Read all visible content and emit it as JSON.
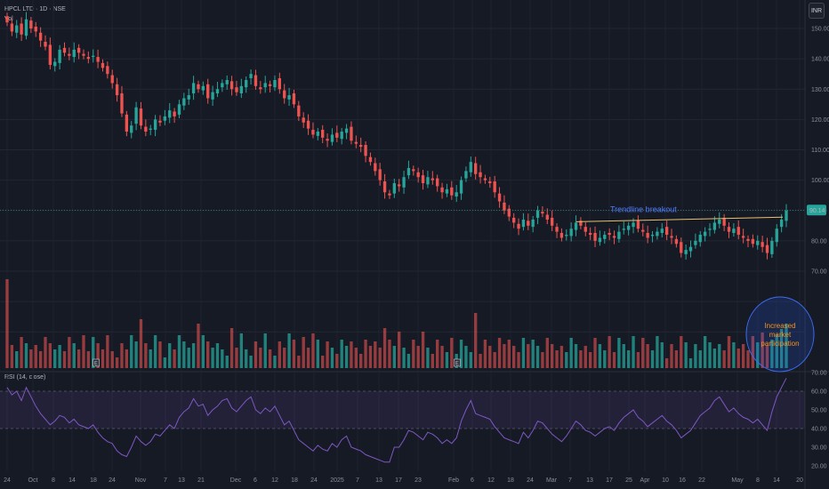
{
  "header": {
    "symbol_line": "HPCL LTD · 1D · NSE",
    "vol_label": "Vol",
    "rsi_label": "RSI (14, close)",
    "currency_button": "INR"
  },
  "colors": {
    "background": "#161a25",
    "up": "#26a69a",
    "down": "#ef5350",
    "rsi_line": "#7e57c2",
    "trendline": "#e8c26a",
    "annotation_blue": "#2962ff",
    "annotation_orange": "#f7931a"
  },
  "annotations": {
    "trendline_text": "Trendline breakout",
    "circle_text_1": "Increased",
    "circle_text_2": "market",
    "circle_text_3": "participation",
    "last_price": "90.14",
    "event_marker_e": "E"
  },
  "chart_data": [
    {
      "type": "candlestick",
      "title": "HPCL LTD · 1D · NSE",
      "ylim": [
        68,
        156
      ],
      "y_ticks": [
        "150.00",
        "140.00",
        "130.00",
        "120.00",
        "110.00",
        "100.00",
        "90.00",
        "80.00",
        "70.00"
      ],
      "x_ticks": [
        "24",
        "Oct",
        "8",
        "14",
        "18",
        "24",
        "Nov",
        "7",
        "13",
        "21",
        "Dec",
        "6",
        "12",
        "18",
        "24",
        "2025",
        "7",
        "13",
        "17",
        "23",
        "Feb",
        "6",
        "12",
        "18",
        "24",
        "Mar",
        "7",
        "13",
        "17",
        "25",
        "Apr",
        "10",
        "16",
        "22",
        "May",
        "8",
        "14",
        "20"
      ],
      "closes": [
        152,
        149,
        151,
        148,
        153,
        150,
        149,
        146,
        144,
        138,
        139,
        143,
        142,
        141,
        143,
        142,
        141,
        140,
        141,
        139,
        137,
        135,
        132,
        128,
        122,
        116,
        118,
        124,
        118,
        116,
        117,
        120,
        119,
        121,
        123,
        121,
        125,
        127,
        128,
        132,
        130,
        131,
        127,
        129,
        130,
        132,
        133,
        130,
        129,
        131,
        133,
        135,
        131,
        130,
        132,
        131,
        133,
        130,
        127,
        128,
        125,
        121,
        119,
        117,
        115,
        116,
        114,
        113,
        115,
        114,
        116,
        117,
        113,
        112,
        111,
        108,
        106,
        103,
        100,
        96,
        95,
        99,
        98,
        101,
        104,
        103,
        101,
        99,
        101,
        100,
        98,
        96,
        97,
        95,
        96,
        100,
        103,
        106,
        102,
        101,
        100,
        99,
        96,
        93,
        90,
        88,
        86,
        84,
        87,
        85,
        87,
        90,
        89,
        87,
        85,
        83,
        81,
        82,
        84,
        86,
        85,
        83,
        82,
        80,
        81,
        82,
        82,
        81,
        83,
        84,
        85,
        86,
        84,
        83,
        81,
        82,
        83,
        84,
        82,
        81,
        79,
        76,
        77,
        78,
        80,
        82,
        83,
        84,
        86,
        87,
        85,
        83,
        84,
        82,
        81,
        80,
        79,
        80,
        78,
        76,
        80,
        84,
        87,
        90
      ],
      "rsi": [
        62,
        58,
        60,
        55,
        62,
        57,
        52,
        48,
        45,
        42,
        44,
        47,
        46,
        43,
        45,
        42,
        41,
        40,
        42,
        38,
        35,
        33,
        32,
        28,
        26,
        25,
        30,
        36,
        33,
        31,
        33,
        37,
        36,
        39,
        42,
        40,
        46,
        49,
        51,
        56,
        52,
        53,
        47,
        50,
        52,
        55,
        56,
        51,
        49,
        52,
        55,
        57,
        50,
        48,
        51,
        49,
        52,
        47,
        42,
        44,
        39,
        34,
        32,
        30,
        28,
        31,
        29,
        28,
        32,
        30,
        34,
        36,
        30,
        29,
        28,
        26,
        25,
        24,
        23,
        22,
        22,
        30,
        30,
        34,
        39,
        38,
        36,
        34,
        38,
        37,
        35,
        32,
        34,
        32,
        35,
        44,
        50,
        55,
        48,
        47,
        46,
        45,
        41,
        38,
        35,
        34,
        33,
        32,
        38,
        35,
        39,
        44,
        43,
        40,
        37,
        35,
        33,
        36,
        40,
        44,
        42,
        39,
        38,
        36,
        38,
        40,
        41,
        39,
        43,
        46,
        48,
        50,
        46,
        44,
        41,
        43,
        45,
        47,
        44,
        42,
        39,
        35,
        37,
        39,
        43,
        47,
        49,
        51,
        55,
        57,
        53,
        49,
        51,
        48,
        46,
        45,
        43,
        45,
        42,
        39,
        49,
        57,
        62,
        67
      ],
      "rsi_levels": [
        "70.00",
        "60.00",
        "50.00",
        "40.00",
        "30.00",
        "20.00"
      ],
      "rsi_ylim": [
        15,
        72
      ]
    }
  ]
}
